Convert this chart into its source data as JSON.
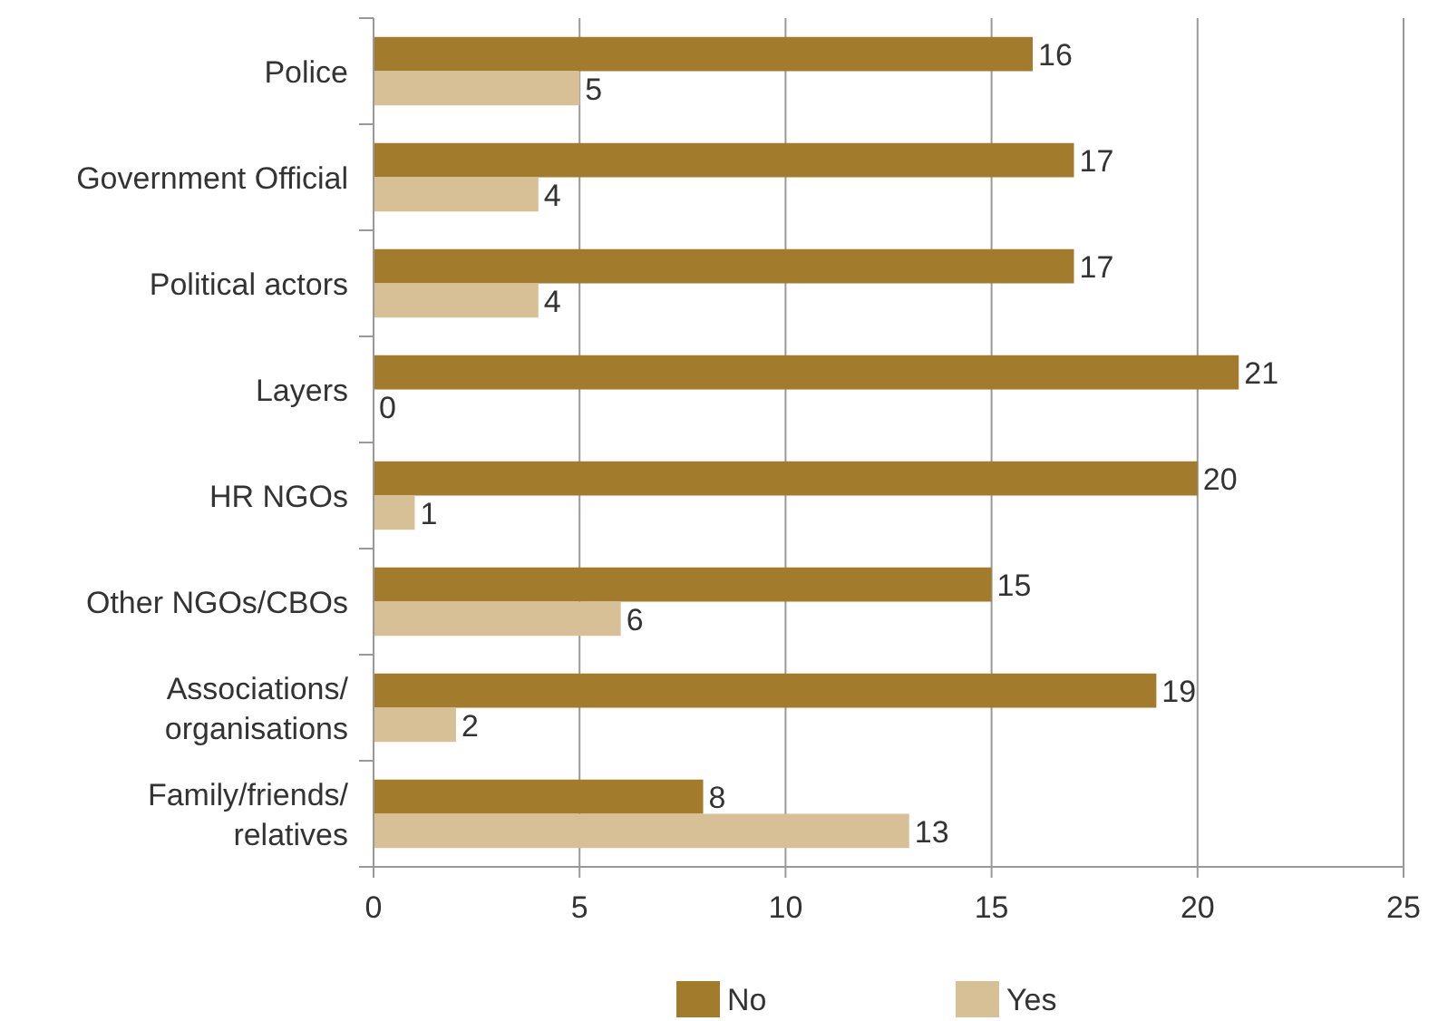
{
  "chart_data": {
    "type": "bar",
    "orientation": "horizontal",
    "categories": [
      "Police",
      "Government Official",
      "Political actors",
      "Layers",
      "HR NGOs",
      "Other NGOs/CBOs",
      "Associations/ organisations",
      "Family/friends/ relatives"
    ],
    "series": [
      {
        "name": "No",
        "color": "#a27b2c",
        "values": [
          16,
          17,
          17,
          21,
          20,
          15,
          19,
          8
        ]
      },
      {
        "name": "Yes",
        "color": "#d7bf96",
        "values": [
          5,
          4,
          4,
          0,
          1,
          6,
          2,
          13
        ]
      }
    ],
    "xlim": [
      0,
      25
    ],
    "xticks": [
      0,
      5,
      10,
      15,
      20,
      25
    ],
    "grid": "x",
    "legend": "bottom",
    "data_labels": true
  }
}
